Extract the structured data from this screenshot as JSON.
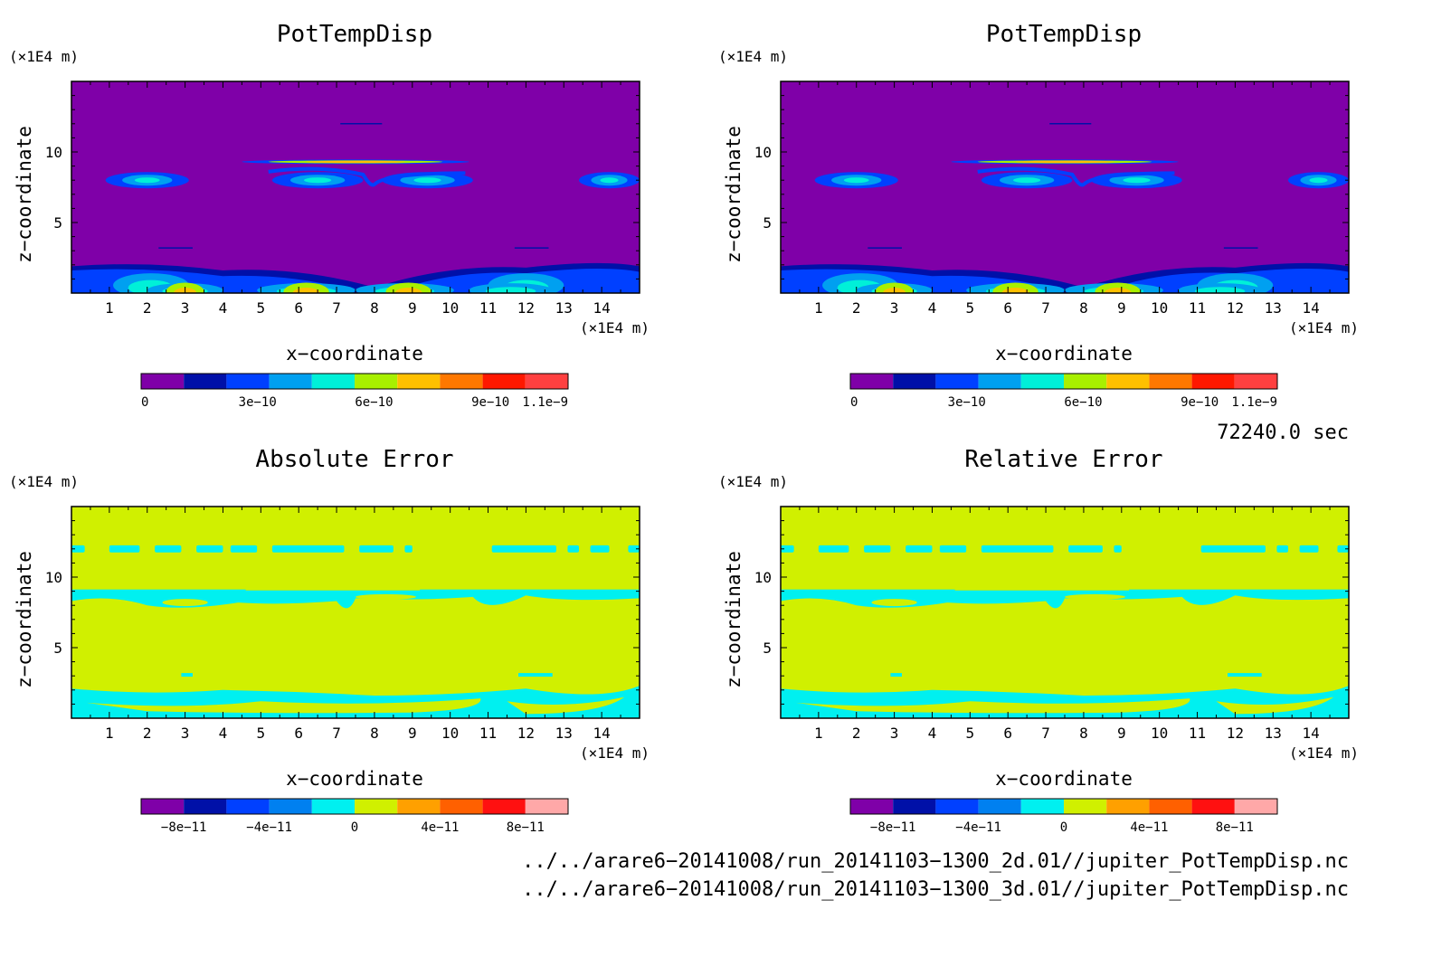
{
  "panels": [
    {
      "title": "PotTempDisp",
      "xlabel": "x−coordinate",
      "ylabel": "z−coordinate",
      "x_unit": "(×1E4 m)",
      "y_unit": "(×1E4 m)",
      "xticks": [
        "1",
        "2",
        "3",
        "4",
        "5",
        "6",
        "7",
        "8",
        "9",
        "10",
        "11",
        "12",
        "13",
        "14"
      ],
      "yticks": [
        "5",
        "10"
      ],
      "colorbar": {
        "colors": [
          "#7f00a8",
          "#0010a8",
          "#0040ff",
          "#00a0f0",
          "#00f0d8",
          "#a8f000",
          "#ffc000",
          "#ff7800",
          "#ff1800",
          "#ff4040"
        ],
        "labels": [
          "0",
          "3e−10",
          "6e−10",
          "9e−10",
          "1.1e−9"
        ]
      }
    },
    {
      "title": "PotTempDisp",
      "xlabel": "x−coordinate",
      "ylabel": "z−coordinate",
      "x_unit": "(×1E4 m)",
      "y_unit": "(×1E4 m)",
      "xticks": [
        "1",
        "2",
        "3",
        "4",
        "5",
        "6",
        "7",
        "8",
        "9",
        "10",
        "11",
        "12",
        "13",
        "14"
      ],
      "yticks": [
        "5",
        "10"
      ],
      "colorbar": {
        "colors": [
          "#7f00a8",
          "#0010a8",
          "#0040ff",
          "#00a0f0",
          "#00f0d8",
          "#a8f000",
          "#ffc000",
          "#ff7800",
          "#ff1800",
          "#ff4040"
        ],
        "labels": [
          "0",
          "3e−10",
          "6e−10",
          "9e−10",
          "1.1e−9"
        ]
      }
    },
    {
      "title": "Absolute Error",
      "xlabel": "x−coordinate",
      "ylabel": "z−coordinate",
      "x_unit": "(×1E4 m)",
      "y_unit": "(×1E4 m)",
      "xticks": [
        "1",
        "2",
        "3",
        "4",
        "5",
        "6",
        "7",
        "8",
        "9",
        "10",
        "11",
        "12",
        "13",
        "14"
      ],
      "yticks": [
        "5",
        "10"
      ],
      "colorbar": {
        "colors": [
          "#7f00a8",
          "#0010a8",
          "#0040ff",
          "#0080f0",
          "#00f0f0",
          "#d0f000",
          "#ffa000",
          "#ff6000",
          "#ff1010",
          "#ffa8a8"
        ],
        "labels": [
          "−8e−11",
          "−4e−11",
          "0",
          "4e−11",
          "8e−11"
        ]
      }
    },
    {
      "title": "Relative Error",
      "xlabel": "x−coordinate",
      "ylabel": "z−coordinate",
      "x_unit": "(×1E4 m)",
      "y_unit": "(×1E4 m)",
      "xticks": [
        "1",
        "2",
        "3",
        "4",
        "5",
        "6",
        "7",
        "8",
        "9",
        "10",
        "11",
        "12",
        "13",
        "14"
      ],
      "yticks": [
        "5",
        "10"
      ],
      "colorbar": {
        "colors": [
          "#7f00a8",
          "#0010a8",
          "#0040ff",
          "#0080f0",
          "#00f0f0",
          "#d0f000",
          "#ffa000",
          "#ff6000",
          "#ff1010",
          "#ffa8a8"
        ],
        "labels": [
          "−8e−11",
          "−4e−11",
          "0",
          "4e−11",
          "8e−11"
        ]
      }
    }
  ],
  "time_label": "72240.0 sec",
  "footer": {
    "line1": "../../arare6−20141008/run_20141103−1300_2d.01//jupiter_PotTempDisp.nc",
    "line2": "../../arare6−20141008/run_20141103−1300_3d.01//jupiter_PotTempDisp.nc"
  },
  "chart_data": [
    {
      "type": "heatmap",
      "title": "PotTempDisp",
      "xlabel": "x−coordinate",
      "ylabel": "z−coordinate",
      "xlim": [
        0,
        15
      ],
      "ylim": [
        0,
        15
      ],
      "colorbar_range": [
        0,
        1.1e-09
      ],
      "background_value": 0,
      "features": [
        {
          "desc": "thin band",
          "z": 9.3,
          "x": [
            4.5,
            10.5
          ],
          "peak": 9e-10
        },
        {
          "desc": "arc structures",
          "z": 8.0,
          "x": [
            1,
            3.2
          ],
          "peak": 5e-10
        },
        {
          "desc": "arc structures",
          "z": 8.0,
          "x": [
            5.2,
            10.4
          ],
          "peak": 6e-10
        },
        {
          "desc": "arc structures",
          "z": 8.0,
          "x": [
            13.5,
            15
          ],
          "peak": 5e-10
        },
        {
          "desc": "near-surface structures",
          "z": 1.0,
          "x": [
            0,
            15
          ],
          "peak": 9e-10
        }
      ]
    },
    {
      "type": "heatmap",
      "title": "PotTempDisp",
      "xlabel": "x−coordinate",
      "ylabel": "z−coordinate",
      "xlim": [
        0,
        15
      ],
      "ylim": [
        0,
        15
      ],
      "colorbar_range": [
        0,
        1.1e-09
      ],
      "background_value": 0,
      "features": [
        {
          "desc": "thin band",
          "z": 9.3,
          "x": [
            4.5,
            10.5
          ],
          "peak": 9e-10
        },
        {
          "desc": "arc structures",
          "z": 8.0,
          "x": [
            1,
            3.2
          ],
          "peak": 5e-10
        },
        {
          "desc": "arc structures",
          "z": 8.0,
          "x": [
            5.2,
            10.4
          ],
          "peak": 6e-10
        },
        {
          "desc": "arc structures",
          "z": 8.0,
          "x": [
            13.5,
            15
          ],
          "peak": 5e-10
        },
        {
          "desc": "near-surface structures",
          "z": 1.0,
          "x": [
            0,
            15
          ],
          "peak": 9e-10
        }
      ]
    },
    {
      "type": "heatmap",
      "title": "Absolute Error",
      "xlabel": "x−coordinate",
      "ylabel": "z−coordinate",
      "xlim": [
        0,
        15
      ],
      "ylim": [
        0,
        15
      ],
      "colorbar_range": [
        -1e-10,
        1e-10
      ],
      "background_value": 0,
      "features": [
        {
          "desc": "patches slightly negative",
          "z": 12.0,
          "value": -1e-11
        },
        {
          "desc": "patches slightly negative",
          "z": 8.8,
          "value": -1e-11
        },
        {
          "desc": "patches slightly negative",
          "z": 1.5,
          "value": -1e-11
        }
      ]
    },
    {
      "type": "heatmap",
      "title": "Relative Error",
      "xlabel": "x−coordinate",
      "ylabel": "z−coordinate",
      "xlim": [
        0,
        15
      ],
      "ylim": [
        0,
        15
      ],
      "colorbar_range": [
        -1e-10,
        1e-10
      ],
      "background_value": 0,
      "features": [
        {
          "desc": "patches slightly negative",
          "z": 12.0,
          "value": -1e-11
        },
        {
          "desc": "patches slightly negative",
          "z": 8.8,
          "value": -1e-11
        },
        {
          "desc": "patches slightly negative",
          "z": 1.5,
          "value": -1e-11
        }
      ]
    }
  ]
}
